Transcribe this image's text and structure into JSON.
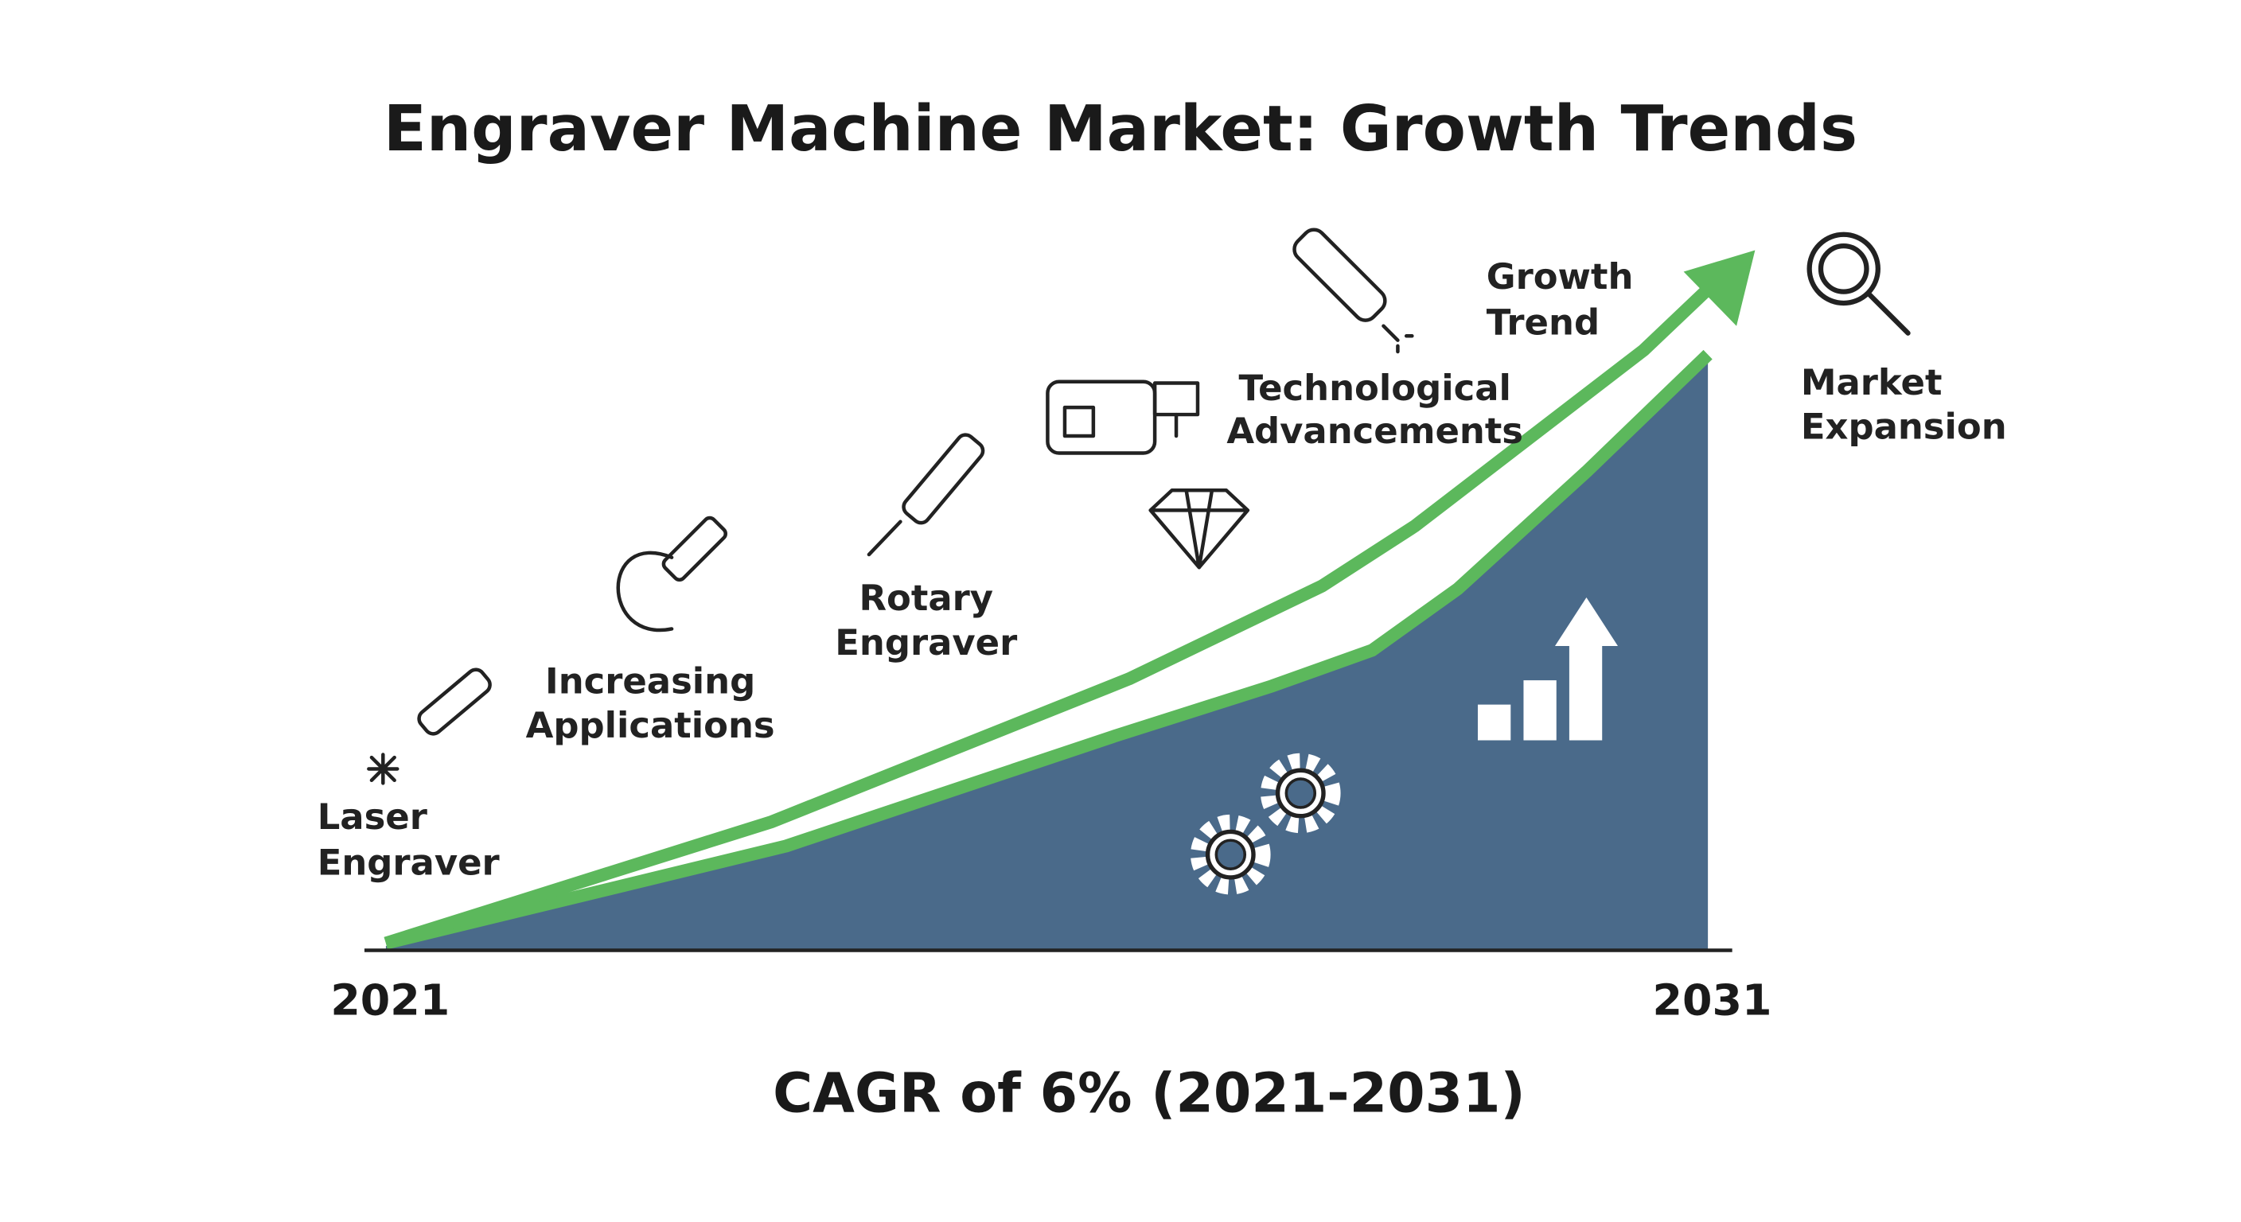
{
  "title": "Engraver Machine Market: Growth Trends",
  "labels": [
    {
      "lines": [
        "Laser",
        "Engraver"
      ]
    },
    {
      "lines": [
        "Increasing",
        "Applications"
      ]
    },
    {
      "lines": [
        "Rotary",
        "Engraver"
      ]
    },
    {
      "lines": [
        "Technological",
        "Advancements"
      ]
    },
    {
      "lines": [
        "Growth",
        "Trend"
      ]
    },
    {
      "lines": [
        "Market",
        "Expansion"
      ]
    }
  ],
  "axis": {
    "start": "2021",
    "end": "2031"
  },
  "footer": "CAGR of 6% (2021-2031)"
}
